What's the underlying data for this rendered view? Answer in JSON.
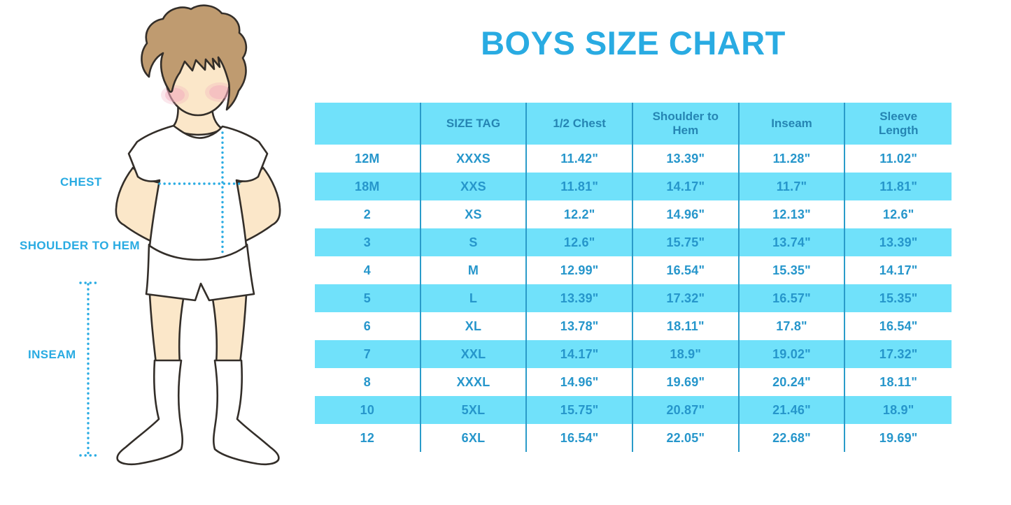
{
  "title": "BOYS SIZE CHART",
  "colors": {
    "title_blue": "#29ABE2",
    "label_blue": "#29ABE2",
    "dotted_line_blue": "#2AACE3",
    "row_band_blue": "#70E1FA",
    "column_separator_blue": "#2A9BC9",
    "header_text_blue": "#2585B3",
    "cell_text_blue": "#2696CB",
    "skin": "#FBE7C9",
    "hair_brown": "#BF9B70",
    "cheek_pink": "#F2A9BC",
    "outline_dark": "#332E29"
  },
  "figure": {
    "labels": [
      {
        "text": "CHEST"
      },
      {
        "text": "SHOULDER TO HEM"
      },
      {
        "text": "INSEAM"
      }
    ]
  },
  "chart_data": {
    "type": "table",
    "title": "BOYS SIZE CHART",
    "columns": [
      "",
      "SIZE TAG",
      "1/2 Chest",
      "Shoulder to Hem",
      "Inseam",
      "Sleeve Length"
    ],
    "rows": [
      [
        "12M",
        "XXXS",
        "11.42\"",
        "13.39\"",
        "11.28\"",
        "11.02\""
      ],
      [
        "18M",
        "XXS",
        "11.81\"",
        "14.17\"",
        "11.7\"",
        "11.81\""
      ],
      [
        "2",
        "XS",
        "12.2\"",
        "14.96\"",
        "12.13\"",
        "12.6\""
      ],
      [
        "3",
        "S",
        "12.6\"",
        "15.75\"",
        "13.74\"",
        "13.39\""
      ],
      [
        "4",
        "M",
        "12.99\"",
        "16.54\"",
        "15.35\"",
        "14.17\""
      ],
      [
        "5",
        "L",
        "13.39\"",
        "17.32\"",
        "16.57\"",
        "15.35\""
      ],
      [
        "6",
        "XL",
        "13.78\"",
        "18.11\"",
        "17.8\"",
        "16.54\""
      ],
      [
        "7",
        "XXL",
        "14.17\"",
        "18.9\"",
        "19.02\"",
        "17.32\""
      ],
      [
        "8",
        "XXXL",
        "14.96\"",
        "19.69\"",
        "20.24\"",
        "18.11\""
      ],
      [
        "10",
        "5XL",
        "15.75\"",
        "20.87\"",
        "21.46\"",
        "18.9\""
      ],
      [
        "12",
        "6XL",
        "16.54\"",
        "22.05\"",
        "22.68\"",
        "19.69\""
      ]
    ],
    "row_striping": "header and alternate rows (18M, 3, 5, 7, 10) on light blue bands; others white",
    "legend_position": "none",
    "grid": "vertical column separators only"
  }
}
